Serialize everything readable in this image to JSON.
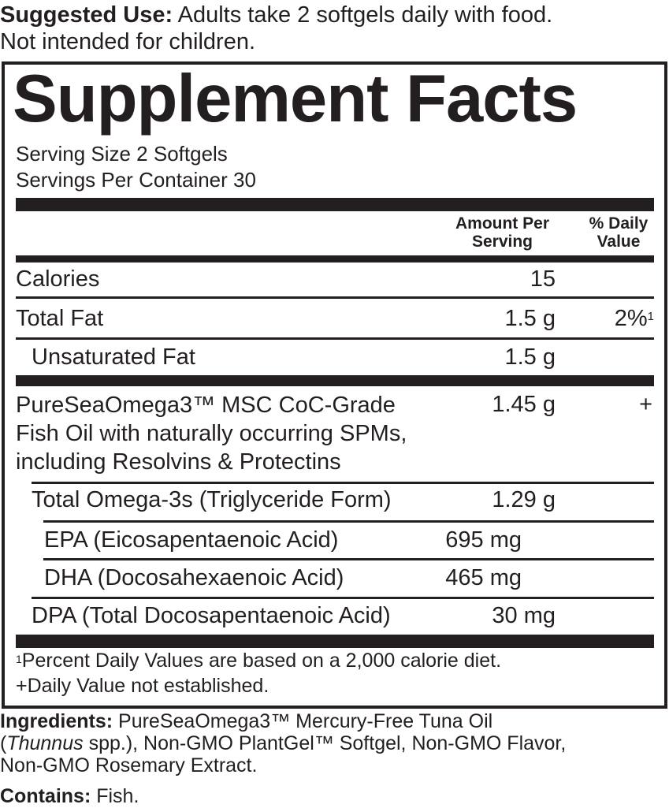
{
  "suggested_use": {
    "label": "Suggested Use:",
    "text": " Adults take 2 softgels daily with food.",
    "line2": "Not intended for children."
  },
  "facts": {
    "title": "Supplement Facts",
    "serving_size": "Serving Size 2 Softgels",
    "servings_per_container": "Servings Per Container 30",
    "col_amount": [
      "Amount Per",
      "Serving"
    ],
    "col_dv": [
      "% Daily",
      "Value"
    ],
    "rows": [
      {
        "name": "Calories",
        "amount": "15",
        "dv": ""
      },
      {
        "name": "Total Fat",
        "amount": "1.5 g",
        "dv": "2%",
        "dv_sup": "1"
      },
      {
        "name": "Unsaturated Fat",
        "amount": "1.5 g",
        "dv": ""
      },
      {
        "name_lines": [
          "PureSeaOmega3™ MSC CoC-Grade",
          "Fish Oil with naturally occurring SPMs,",
          "including Resolvins & Protectins"
        ],
        "amount": "1.45 g",
        "dv": "+"
      },
      {
        "name": "Total Omega-3s (Triglyceride Form)",
        "amount": "1.29 g",
        "dv": ""
      },
      {
        "name": "EPA (Eicosapentaenoic Acid)",
        "amount": "695 mg",
        "dv": ""
      },
      {
        "name": "DHA (Docosahexaenoic Acid)",
        "amount": "465 mg",
        "dv": ""
      },
      {
        "name": "DPA (Total Docosapentaenoic Acid)",
        "amount": "30 mg",
        "dv": ""
      }
    ],
    "footnote1_sup": "1",
    "footnote1": "Percent Daily Values are based on a 2,000 calorie diet.",
    "footnote2": "+Daily Value not established."
  },
  "ingredients": {
    "label": "Ingredients:",
    "line1": " PureSeaOmega3™ Mercury-Free Tuna Oil",
    "line2_italic": "Thunnus",
    "line2": " spp.), Non-GMO PlantGel™ Softgel, Non-GMO Flavor,",
    "line2_open": "(",
    "line3": "Non-GMO Rosemary Extract."
  },
  "contains": {
    "label": "Contains:",
    "text": " Fish."
  }
}
